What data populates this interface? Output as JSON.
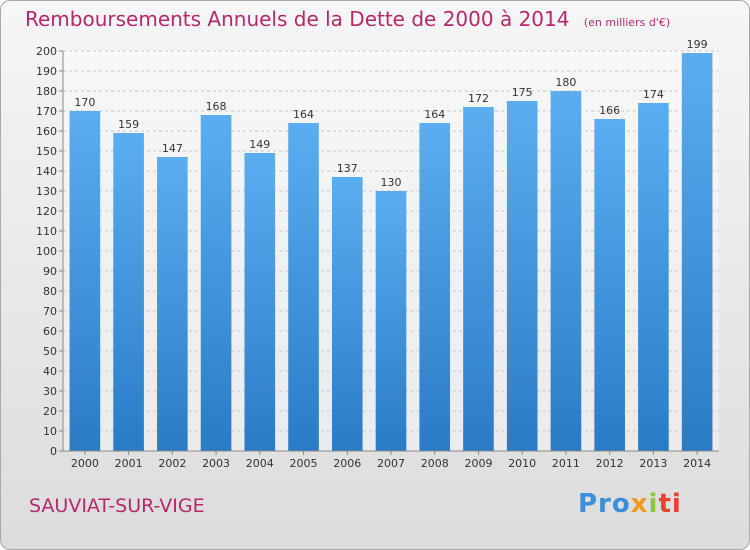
{
  "header": {
    "title": "Remboursements Annuels de la Dette de 2000 à 2014",
    "unit": "(en milliers d'€)"
  },
  "footer": {
    "city": "SAUVIAT-SUR-VIGE",
    "logo": [
      "Pro",
      "x",
      "i",
      "ti"
    ]
  },
  "chart_data": {
    "type": "bar",
    "title": "Remboursements Annuels de la Dette de 2000 à 2014",
    "unit": "(en milliers d'€)",
    "categories": [
      "2000",
      "2001",
      "2002",
      "2003",
      "2004",
      "2005",
      "2006",
      "2007",
      "2008",
      "2009",
      "2010",
      "2011",
      "2012",
      "2013",
      "2014"
    ],
    "values": [
      170,
      159,
      147,
      168,
      149,
      164,
      137,
      130,
      164,
      172,
      175,
      180,
      166,
      174,
      199
    ],
    "ylim": [
      0,
      200
    ],
    "yticks": [
      0,
      10,
      20,
      30,
      40,
      50,
      60,
      70,
      80,
      90,
      100,
      110,
      120,
      130,
      140,
      150,
      160,
      170,
      180,
      190,
      200
    ],
    "grid": true,
    "bar_color": "#3f95de"
  }
}
